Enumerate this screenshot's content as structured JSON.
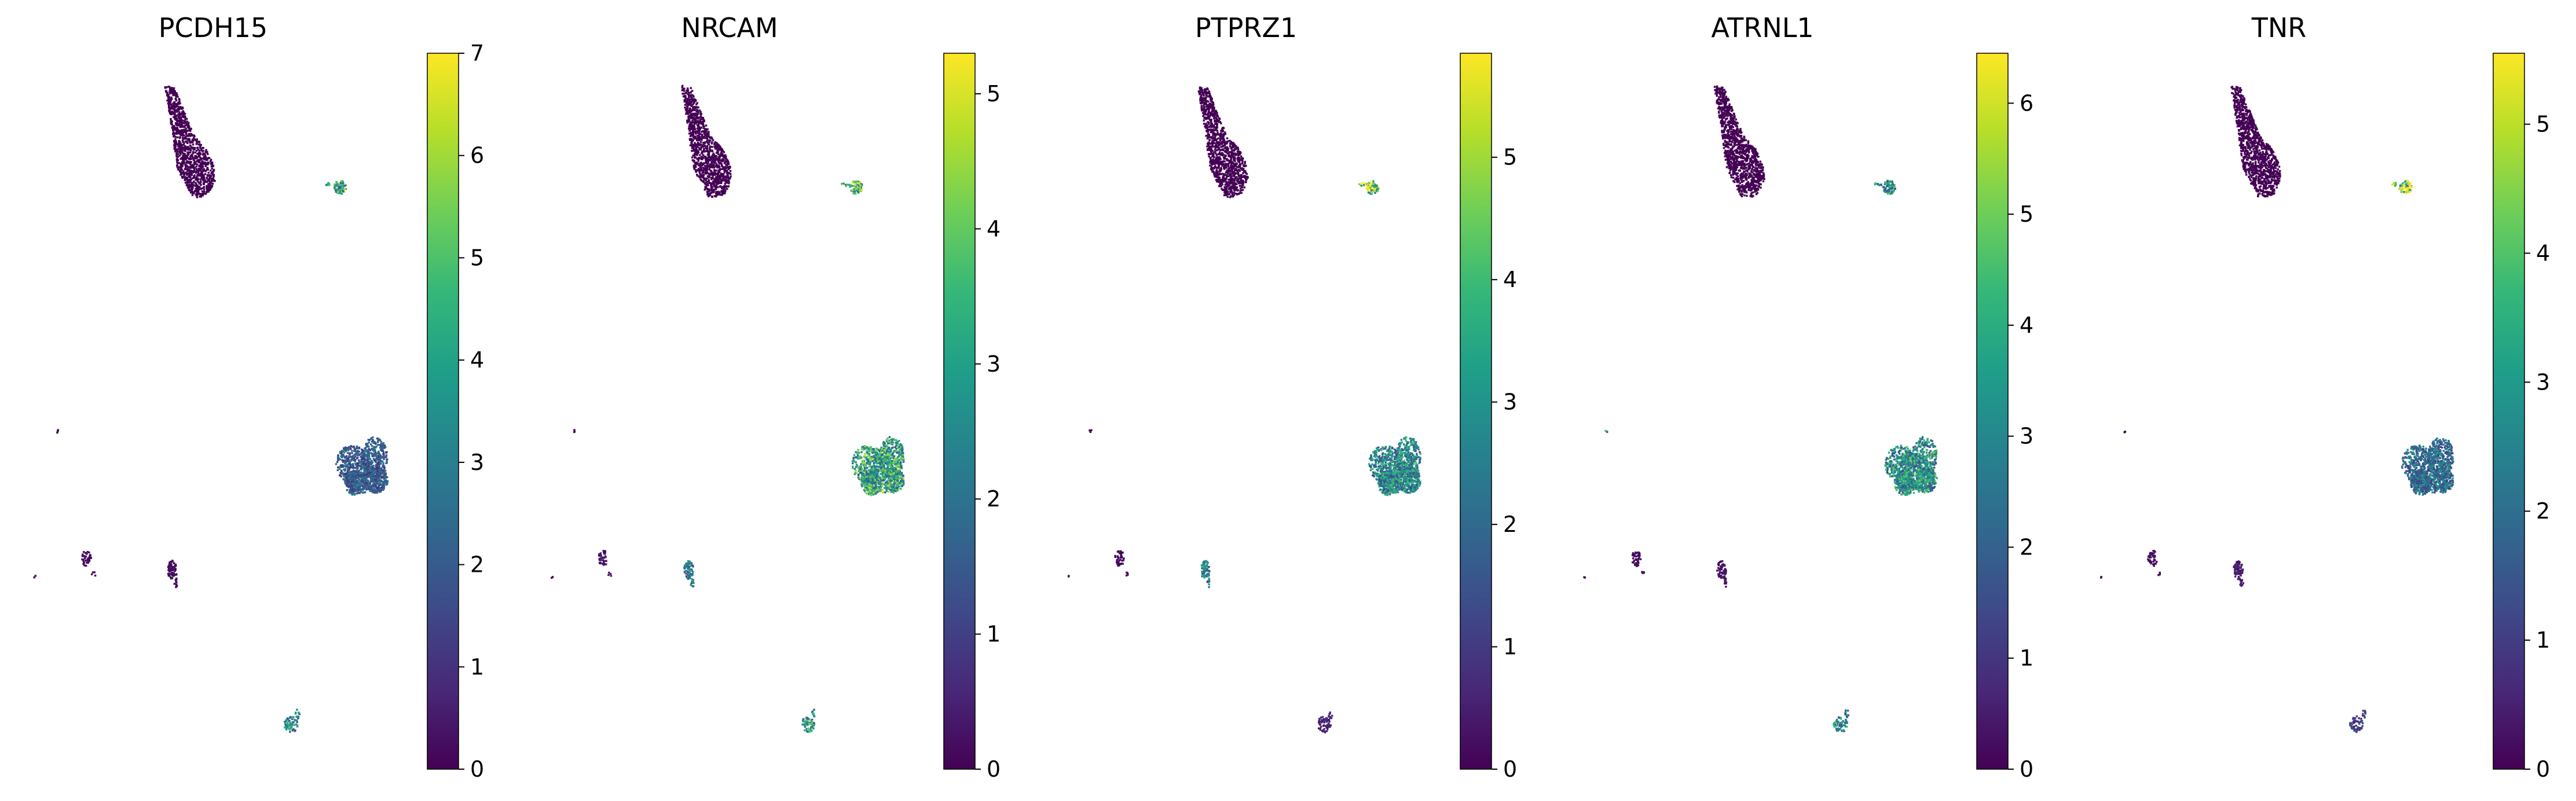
{
  "figure": {
    "type": "umap-feature-plots",
    "colormap": "viridis",
    "colormap_stops": [
      "#440154",
      "#482878",
      "#3e4a89",
      "#31688e",
      "#26828e",
      "#1f9e89",
      "#35b779",
      "#6ece58",
      "#b5de2b",
      "#fde725"
    ]
  },
  "chart_data": [
    {
      "type": "scatter",
      "title": "PCDH15",
      "colorbar": {
        "min": 0,
        "max": 7,
        "ticks": [
          0,
          1,
          2,
          3,
          4,
          5,
          6,
          7
        ]
      },
      "cluster_expression": {
        "top": 0.0,
        "small_tr": 4.2,
        "dot": 0.0,
        "big_right": 2.0,
        "left_small": 0.2,
        "mid_small": 0.2,
        "far_left": 0.0,
        "bottom": 3.2
      },
      "axes_visible": false
    },
    {
      "type": "scatter",
      "title": "NRCAM",
      "colorbar": {
        "min": 0,
        "max": 5.3,
        "ticks": [
          0,
          1,
          2,
          3,
          4,
          5
        ]
      },
      "cluster_expression": {
        "top": 0.0,
        "small_tr": 3.5,
        "dot": 0.0,
        "big_right": 3.0,
        "left_small": 0.3,
        "mid_small": 2.2,
        "far_left": 0.0,
        "bottom": 2.8
      },
      "axes_visible": false
    },
    {
      "type": "scatter",
      "title": "PTPRZ1",
      "colorbar": {
        "min": 0,
        "max": 5.85,
        "ticks": [
          0,
          1,
          2,
          3,
          4,
          5
        ]
      },
      "cluster_expression": {
        "top": 0.0,
        "small_tr": 4.9,
        "dot": 0.0,
        "big_right": 2.7,
        "left_small": 0.1,
        "mid_small": 2.4,
        "far_left": 0.0,
        "bottom": 0.6
      },
      "axes_visible": false
    },
    {
      "type": "scatter",
      "title": "ATRNL1",
      "colorbar": {
        "min": 0,
        "max": 6.45,
        "ticks": [
          0,
          1,
          2,
          3,
          4,
          5,
          6
        ]
      },
      "cluster_expression": {
        "top": 0.0,
        "small_tr": 3.0,
        "dot": 3.5,
        "big_right": 3.3,
        "left_small": 0.2,
        "mid_small": 0.3,
        "far_left": 0.0,
        "bottom": 3.1
      },
      "axes_visible": false
    },
    {
      "type": "scatter",
      "title": "TNR",
      "colorbar": {
        "min": 0,
        "max": 5.55,
        "ticks": [
          0,
          1,
          2,
          3,
          4,
          5
        ]
      },
      "cluster_expression": {
        "top": 0.0,
        "small_tr": 4.6,
        "dot": 0.0,
        "big_right": 1.9,
        "left_small": 0.2,
        "mid_small": 0.4,
        "far_left": 0.0,
        "bottom": 1.0
      },
      "axes_visible": false
    }
  ]
}
